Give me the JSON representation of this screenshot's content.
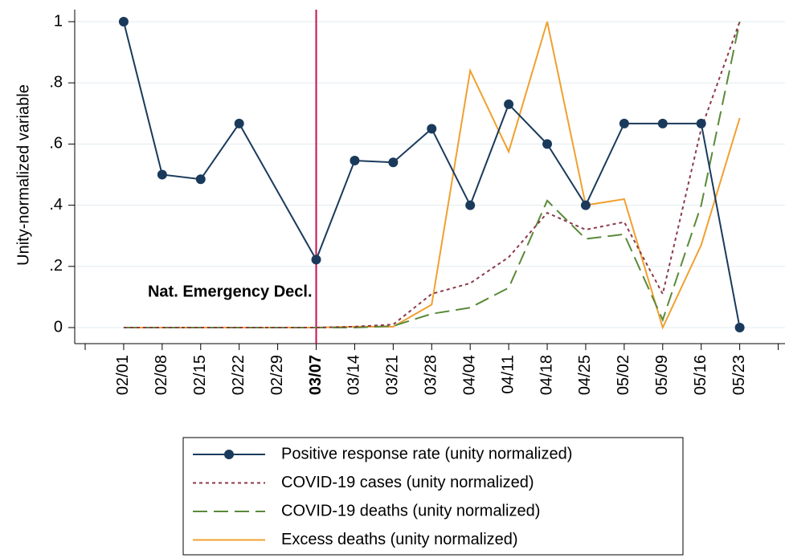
{
  "chart_data": {
    "type": "line",
    "y_label": "Unity-normalized variable",
    "categories": [
      null,
      "02/01",
      "02/08",
      "02/15",
      "02/22",
      "02/29",
      "03/07",
      "03/14",
      "03/21",
      "03/28",
      "04/04",
      "04/11",
      "04/18",
      "04/25",
      "05/02",
      "05/09",
      "05/16",
      "05/23",
      null
    ],
    "ylim": [
      0,
      1
    ],
    "yticks": [
      0,
      {
        "value": 0.2,
        "label": ".2"
      },
      {
        "value": 0.4,
        "label": ".4"
      },
      {
        "value": 0.6,
        "label": ".6"
      },
      {
        "value": 0.8,
        "label": ".8"
      },
      1
    ],
    "grid": true,
    "vline": "03/07",
    "vline_color": "#c8104c",
    "annotation": "Nat. Emergency Decl.",
    "series": [
      {
        "name": "Positive response rate (unity normalized)",
        "color": "#1a3a5c",
        "dash": "solid",
        "marker": "circle",
        "x": [
          "02/01",
          "02/08",
          "02/15",
          "02/22",
          "03/07",
          "03/14",
          "03/21",
          "03/28",
          "04/04",
          "04/11",
          "04/18",
          "04/25",
          "05/02",
          "05/09",
          "05/16",
          "05/23"
        ],
        "values": [
          1,
          0.5,
          0.485,
          0.667,
          0.222,
          0.546,
          0.54,
          0.65,
          0.4,
          0.73,
          0.6,
          0.4,
          0.667,
          0.667,
          0.667,
          0
        ]
      },
      {
        "name": "COVID-19 cases (unity normalized)",
        "color": "#8b3a4a",
        "dash": "dotted",
        "x": [
          "02/01",
          "02/08",
          "02/15",
          "02/22",
          "02/29",
          "03/07",
          "03/14",
          "03/21",
          "03/28",
          "04/04",
          "04/11",
          "04/18",
          "04/25",
          "05/02",
          "05/09",
          "05/16",
          "05/23"
        ],
        "values": [
          0,
          0,
          0,
          0,
          0,
          0,
          0.003,
          0.01,
          0.11,
          0.145,
          0.23,
          0.375,
          0.32,
          0.345,
          0.11,
          0.65,
          1
        ]
      },
      {
        "name": "COVID-19 deaths (unity normalized)",
        "color": "#5a8a3a",
        "dash": "dashed",
        "x": [
          "02/01",
          "02/08",
          "02/15",
          "02/22",
          "02/29",
          "03/07",
          "03/14",
          "03/21",
          "03/28",
          "04/04",
          "04/11",
          "04/18",
          "04/25",
          "05/02",
          "05/09",
          "05/16",
          "05/23"
        ],
        "values": [
          0,
          0,
          0,
          0,
          0,
          0,
          0,
          0.005,
          0.045,
          0.065,
          0.13,
          0.415,
          0.29,
          0.305,
          0.025,
          0.4,
          1
        ]
      },
      {
        "name": "Excess deaths (unity normalized)",
        "color": "#f0a030",
        "dash": "solid",
        "x": [
          "02/01",
          "02/08",
          "02/15",
          "02/22",
          "02/29",
          "03/07",
          "03/14",
          "03/21",
          "03/28",
          "04/04",
          "04/11",
          "04/18",
          "04/25",
          "05/02",
          "05/09",
          "05/16",
          "05/23"
        ],
        "values": [
          0,
          0,
          0,
          0,
          0,
          0,
          0.003,
          0.003,
          0.075,
          0.84,
          0.575,
          1,
          0.4,
          0.42,
          0,
          0.27,
          0.685
        ]
      }
    ]
  }
}
